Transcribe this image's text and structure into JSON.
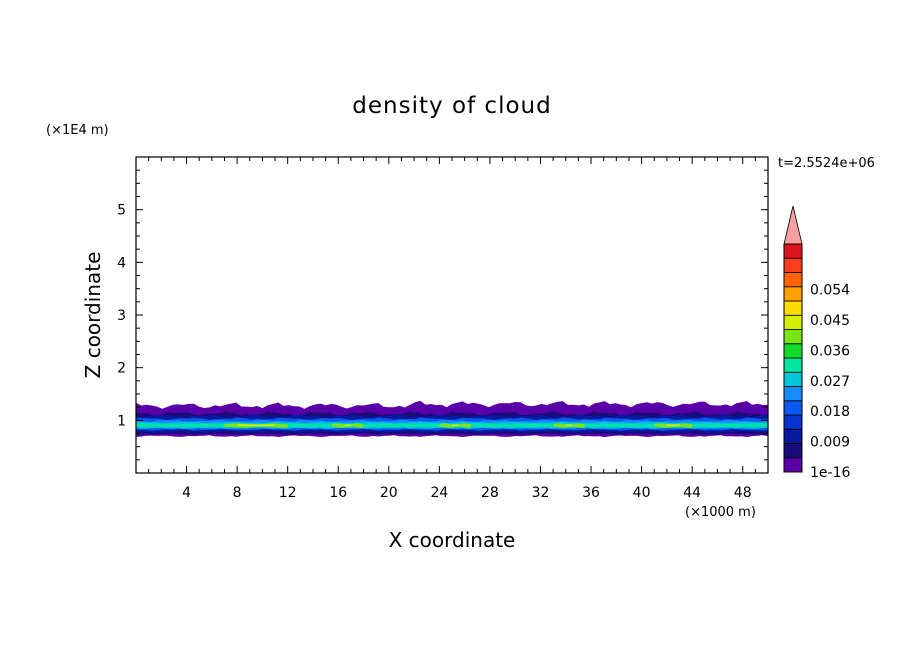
{
  "chart_data": {
    "type": "heatmap",
    "title": "density of cloud",
    "xlabel": "X coordinate",
    "ylabel": "Z coordinate",
    "x_unit": "(×1000 m)",
    "y_unit": "(×1E4 m)",
    "time_label": "t=2.5524e+06",
    "xlim": [
      0,
      50
    ],
    "ylim": [
      0,
      6
    ],
    "x_ticks": [
      "4",
      "8",
      "12",
      "16",
      "20",
      "24",
      "28",
      "32",
      "36",
      "40",
      "44",
      "48"
    ],
    "y_ticks": [
      "1",
      "2",
      "3",
      "4",
      "5"
    ],
    "colorbar": {
      "labels": [
        "1e-16",
        "0.009",
        "0.018",
        "0.027",
        "0.036",
        "0.045",
        "0.054"
      ],
      "levels": [
        1e-16,
        0.0045,
        0.009,
        0.0135,
        0.018,
        0.0225,
        0.027,
        0.0315,
        0.036,
        0.0405,
        0.045,
        0.0495,
        0.054,
        0.0585,
        0.063
      ],
      "colors": [
        "#5a00a8",
        "#1a0a7a",
        "#0a1aa0",
        "#0a32d2",
        "#0a5af0",
        "#148cff",
        "#00c8dc",
        "#00e6a0",
        "#14dc28",
        "#78e614",
        "#d2f000",
        "#ffdc00",
        "#ffa000",
        "#ff6400",
        "#ff3c1e",
        "#dc141e"
      ],
      "extend_color": "#f5a0a0"
    },
    "cloud_layer": {
      "z_base": 0.7,
      "z_top_approx": 1.4,
      "z_core": 0.9,
      "max_density_approx": 0.03
    }
  }
}
